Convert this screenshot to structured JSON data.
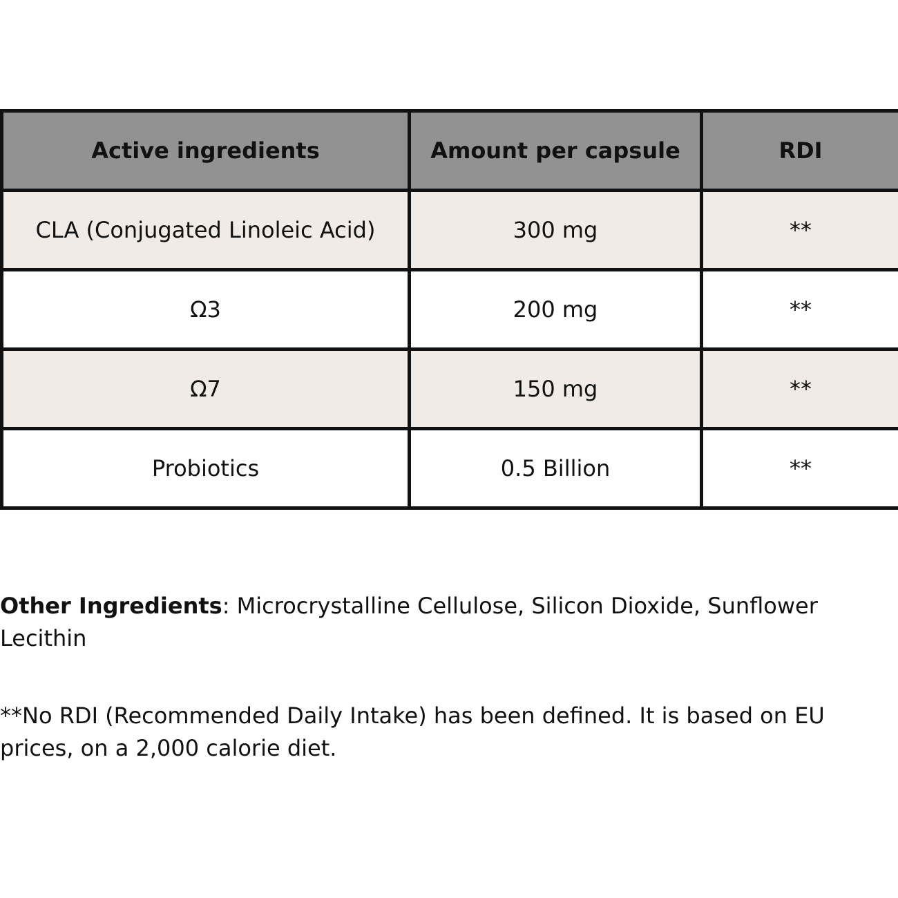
{
  "table": {
    "headers": [
      "Active ingredients",
      "Amount per capsule",
      "RDI"
    ],
    "rows": [
      {
        "ingredient": "CLA (Conjugated Linoleic Acid)",
        "amount": "300 mg",
        "rdi": "**"
      },
      {
        "ingredient": "Ω3",
        "amount": "200 mg",
        "rdi": "**"
      },
      {
        "ingredient": "Ω7",
        "amount": "150 mg",
        "rdi": "**"
      },
      {
        "ingredient": "Probiotics",
        "amount": "0.5 Billion",
        "rdi": "**"
      }
    ]
  },
  "other_ingredients": {
    "label": "Other Ingredients",
    "text": ": Microcrystalline Cellulose, Silicon Dioxide, Sunflower Lecithin"
  },
  "footnote": "**No RDI (Recommended Daily Intake) has been defined. It is based on EU prices, on a 2,000 calorie diet.",
  "colors": {
    "header_bg": "#929292",
    "odd_row_bg": "#f0ebe6",
    "even_row_bg": "#ffffff",
    "border": "#111111"
  }
}
